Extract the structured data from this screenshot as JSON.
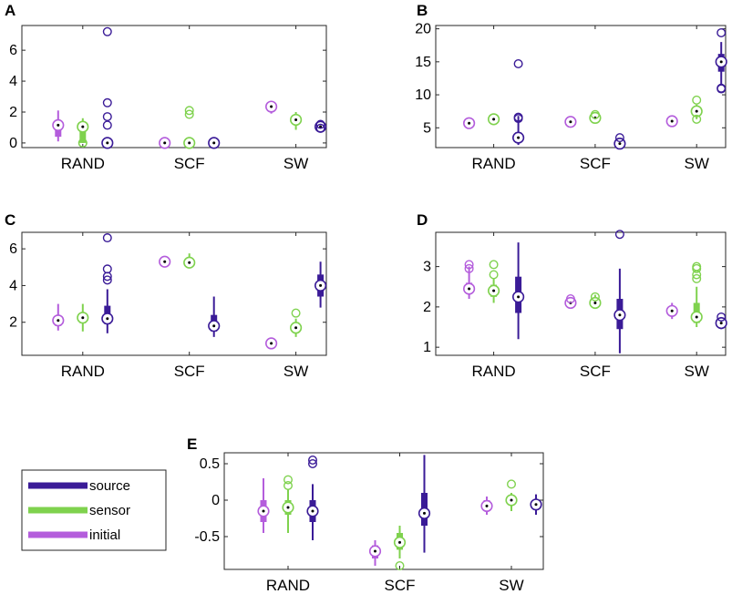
{
  "chart_data": {
    "type": "boxplot",
    "categories": [
      "RAND",
      "SCF",
      "SW"
    ],
    "series_order": [
      "initial",
      "sensor",
      "source"
    ],
    "legend": {
      "placement": "bottom-left",
      "entries": [
        {
          "key": "source",
          "label": "source"
        },
        {
          "key": "sensor",
          "label": "sensor"
        },
        {
          "key": "initial",
          "label": "initial"
        }
      ]
    },
    "colors": {
      "initial": "#b45ddc",
      "sensor": "#7fd24e",
      "source": "#3a1b97"
    },
    "panels": [
      {
        "id": "A",
        "label": "A",
        "ylim": [
          -0.3,
          7.6
        ],
        "yticks": [
          0,
          2,
          4,
          6
        ],
        "ytick_labels": [
          "0",
          "2",
          "4",
          "6"
        ],
        "boxes": [
          {
            "category": "RAND",
            "series": "initial",
            "median": 1.15,
            "q1": 0.4,
            "q3": 1.3,
            "whisker_low": 0.1,
            "whisker_high": 2.1,
            "outliers": []
          },
          {
            "category": "RAND",
            "series": "sensor",
            "median": 1.05,
            "q1": 0.0,
            "q3": 1.15,
            "whisker_low": 0.0,
            "whisker_high": 1.6,
            "outliers": [
              0.0,
              0.0
            ]
          },
          {
            "category": "RAND",
            "series": "source",
            "median": 0.0,
            "q1": 0.0,
            "q3": 0.0,
            "whisker_low": 0.0,
            "whisker_high": 0.0,
            "outliers": [
              7.2,
              2.6,
              1.7,
              1.15
            ]
          },
          {
            "category": "SCF",
            "series": "initial",
            "median": 0.0,
            "q1": 0.0,
            "q3": 0.0,
            "whisker_low": 0.0,
            "whisker_high": 0.0,
            "outliers": []
          },
          {
            "category": "SCF",
            "series": "sensor",
            "median": 0.0,
            "q1": 0.0,
            "q3": 0.0,
            "whisker_low": 0.0,
            "whisker_high": 0.0,
            "outliers": [
              2.1,
              1.85
            ]
          },
          {
            "category": "SCF",
            "series": "source",
            "median": 0.0,
            "q1": 0.0,
            "q3": 0.0,
            "whisker_low": 0.0,
            "whisker_high": 0.0,
            "outliers": []
          },
          {
            "category": "SW",
            "series": "initial",
            "median": 2.35,
            "q1": 2.2,
            "q3": 2.5,
            "whisker_low": 1.9,
            "whisker_high": 2.7,
            "outliers": []
          },
          {
            "category": "SW",
            "series": "sensor",
            "median": 1.5,
            "q1": 1.2,
            "q3": 1.8,
            "whisker_low": 0.85,
            "whisker_high": 2.0,
            "outliers": []
          },
          {
            "category": "SW",
            "series": "source",
            "median": 1.05,
            "q1": 0.95,
            "q3": 1.2,
            "whisker_low": 0.85,
            "whisker_high": 1.3,
            "outliers": [
              1.2,
              0.95
            ]
          }
        ]
      },
      {
        "id": "B",
        "label": "B",
        "ylim": [
          2,
          20.5
        ],
        "yticks": [
          5,
          10,
          15,
          20
        ],
        "ytick_labels": [
          "5",
          "10",
          "15",
          "20"
        ],
        "boxes": [
          {
            "category": "RAND",
            "series": "initial",
            "median": 5.7,
            "q1": 5.5,
            "q3": 5.9,
            "whisker_low": 5.3,
            "whisker_high": 6.1,
            "outliers": []
          },
          {
            "category": "RAND",
            "series": "sensor",
            "median": 6.3,
            "q1": 6.1,
            "q3": 6.5,
            "whisker_low": 5.9,
            "whisker_high": 6.7,
            "outliers": []
          },
          {
            "category": "RAND",
            "series": "source",
            "median": 3.5,
            "q1": 2.8,
            "q3": 4.3,
            "whisker_low": 2.4,
            "whisker_high": 6.8,
            "outliers": [
              14.7,
              6.6,
              6.4
            ]
          },
          {
            "category": "SCF",
            "series": "initial",
            "median": 5.9,
            "q1": 5.7,
            "q3": 6.1,
            "whisker_low": 5.5,
            "whisker_high": 6.3,
            "outliers": []
          },
          {
            "category": "SCF",
            "series": "sensor",
            "median": 6.5,
            "q1": 6.2,
            "q3": 6.8,
            "whisker_low": 6.0,
            "whisker_high": 7.0,
            "outliers": [
              7.0
            ]
          },
          {
            "category": "SCF",
            "series": "source",
            "median": 2.6,
            "q1": 2.3,
            "q3": 2.9,
            "whisker_low": 2.1,
            "whisker_high": 3.1,
            "outliers": [
              3.5
            ]
          },
          {
            "category": "SW",
            "series": "initial",
            "median": 6.0,
            "q1": 5.8,
            "q3": 6.2,
            "whisker_low": 5.6,
            "whisker_high": 6.4,
            "outliers": []
          },
          {
            "category": "SW",
            "series": "sensor",
            "median": 7.5,
            "q1": 7.0,
            "q3": 8.0,
            "whisker_low": 6.3,
            "whisker_high": 8.5,
            "outliers": [
              9.2,
              6.3
            ]
          },
          {
            "category": "SW",
            "series": "source",
            "median": 15.0,
            "q1": 13.5,
            "q3": 16.2,
            "whisker_low": 11.5,
            "whisker_high": 18.0,
            "outliers": [
              19.4,
              11.0,
              10.9
            ]
          }
        ]
      },
      {
        "id": "C",
        "label": "C",
        "ylim": [
          0.2,
          6.9
        ],
        "yticks": [
          2,
          4,
          6
        ],
        "ytick_labels": [
          "2",
          "4",
          "6"
        ],
        "boxes": [
          {
            "category": "RAND",
            "series": "initial",
            "median": 2.1,
            "q1": 1.8,
            "q3": 2.35,
            "whisker_low": 1.55,
            "whisker_high": 3.0,
            "outliers": []
          },
          {
            "category": "RAND",
            "series": "sensor",
            "median": 2.25,
            "q1": 1.95,
            "q3": 2.5,
            "whisker_low": 1.5,
            "whisker_high": 3.0,
            "outliers": []
          },
          {
            "category": "RAND",
            "series": "source",
            "median": 2.2,
            "q1": 1.9,
            "q3": 2.9,
            "whisker_low": 1.4,
            "whisker_high": 3.8,
            "outliers": [
              6.6,
              4.9,
              4.5,
              4.3
            ]
          },
          {
            "category": "SCF",
            "series": "initial",
            "median": 5.3,
            "q1": 5.2,
            "q3": 5.4,
            "whisker_low": 5.1,
            "whisker_high": 5.5,
            "outliers": []
          },
          {
            "category": "SCF",
            "series": "sensor",
            "median": 5.25,
            "q1": 5.1,
            "q3": 5.4,
            "whisker_low": 4.95,
            "whisker_high": 5.75,
            "outliers": []
          },
          {
            "category": "SCF",
            "series": "source",
            "median": 1.8,
            "q1": 1.5,
            "q3": 2.4,
            "whisker_low": 1.2,
            "whisker_high": 3.4,
            "outliers": []
          },
          {
            "category": "SW",
            "series": "initial",
            "median": 0.85,
            "q1": 0.75,
            "q3": 0.95,
            "whisker_low": 0.6,
            "whisker_high": 1.1,
            "outliers": []
          },
          {
            "category": "SW",
            "series": "sensor",
            "median": 1.7,
            "q1": 1.45,
            "q3": 2.0,
            "whisker_low": 1.2,
            "whisker_high": 2.2,
            "outliers": [
              2.5
            ]
          },
          {
            "category": "SW",
            "series": "source",
            "median": 4.0,
            "q1": 3.4,
            "q3": 4.6,
            "whisker_low": 2.8,
            "whisker_high": 5.3,
            "outliers": []
          }
        ]
      },
      {
        "id": "D",
        "label": "D",
        "ylim": [
          0.8,
          3.85
        ],
        "yticks": [
          1,
          2,
          3
        ],
        "ytick_labels": [
          "1",
          "2",
          "3"
        ],
        "boxes": [
          {
            "category": "RAND",
            "series": "initial",
            "median": 2.45,
            "q1": 2.35,
            "q3": 2.6,
            "whisker_low": 2.2,
            "whisker_high": 3.0,
            "outliers": [
              3.05,
              2.95
            ]
          },
          {
            "category": "RAND",
            "series": "sensor",
            "median": 2.4,
            "q1": 2.25,
            "q3": 2.55,
            "whisker_low": 2.1,
            "whisker_high": 2.7,
            "outliers": [
              3.05,
              2.8
            ]
          },
          {
            "category": "RAND",
            "series": "source",
            "median": 2.25,
            "q1": 1.85,
            "q3": 2.75,
            "whisker_low": 1.2,
            "whisker_high": 3.6,
            "outliers": []
          },
          {
            "category": "SCF",
            "series": "initial",
            "median": 2.1,
            "q1": 2.05,
            "q3": 2.15,
            "whisker_low": 2.0,
            "whisker_high": 2.2,
            "outliers": [
              2.2
            ]
          },
          {
            "category": "SCF",
            "series": "sensor",
            "median": 2.1,
            "q1": 2.0,
            "q3": 2.2,
            "whisker_low": 1.95,
            "whisker_high": 2.3,
            "outliers": [
              2.25
            ]
          },
          {
            "category": "SCF",
            "series": "source",
            "median": 1.8,
            "q1": 1.45,
            "q3": 2.2,
            "whisker_low": 0.85,
            "whisker_high": 2.95,
            "outliers": [
              3.8
            ]
          },
          {
            "category": "SW",
            "series": "initial",
            "median": 1.9,
            "q1": 1.8,
            "q3": 2.0,
            "whisker_low": 1.7,
            "whisker_high": 2.1,
            "outliers": []
          },
          {
            "category": "SW",
            "series": "sensor",
            "median": 1.75,
            "q1": 1.6,
            "q3": 2.1,
            "whisker_low": 1.5,
            "whisker_high": 2.5,
            "outliers": [
              3.0,
              2.95,
              2.8,
              2.7
            ]
          },
          {
            "category": "SW",
            "series": "source",
            "median": 1.6,
            "q1": 1.5,
            "q3": 1.7,
            "whisker_low": 1.45,
            "whisker_high": 1.75,
            "outliers": [
              1.75
            ]
          }
        ]
      },
      {
        "id": "E",
        "label": "E",
        "ylim": [
          -0.95,
          0.65
        ],
        "yticks": [
          -0.5,
          0,
          0.5
        ],
        "ytick_labels": [
          "-0.5",
          "0",
          "0.5"
        ],
        "boxes": [
          {
            "category": "RAND",
            "series": "initial",
            "median": -0.15,
            "q1": -0.3,
            "q3": 0.0,
            "whisker_low": -0.45,
            "whisker_high": 0.3,
            "outliers": []
          },
          {
            "category": "RAND",
            "series": "sensor",
            "median": -0.1,
            "q1": -0.2,
            "q3": 0.0,
            "whisker_low": -0.45,
            "whisker_high": 0.15,
            "outliers": [
              0.28,
              0.2
            ]
          },
          {
            "category": "RAND",
            "series": "source",
            "median": -0.15,
            "q1": -0.3,
            "q3": 0.0,
            "whisker_low": -0.55,
            "whisker_high": 0.22,
            "outliers": [
              0.55,
              0.5
            ]
          },
          {
            "category": "SCF",
            "series": "initial",
            "median": -0.7,
            "q1": -0.8,
            "q3": -0.62,
            "whisker_low": -0.9,
            "whisker_high": -0.55,
            "outliers": []
          },
          {
            "category": "SCF",
            "series": "sensor",
            "median": -0.58,
            "q1": -0.68,
            "q3": -0.45,
            "whisker_low": -0.8,
            "whisker_high": -0.35,
            "outliers": [
              -0.9
            ]
          },
          {
            "category": "SCF",
            "series": "source",
            "median": -0.18,
            "q1": -0.35,
            "q3": 0.1,
            "whisker_low": -0.72,
            "whisker_high": 0.62,
            "outliers": []
          },
          {
            "category": "SW",
            "series": "initial",
            "median": -0.08,
            "q1": -0.15,
            "q3": 0.0,
            "whisker_low": -0.2,
            "whisker_high": 0.05,
            "outliers": []
          },
          {
            "category": "SW",
            "series": "sensor",
            "median": 0.0,
            "q1": -0.05,
            "q3": 0.05,
            "whisker_low": -0.15,
            "whisker_high": 0.1,
            "outliers": [
              0.22
            ]
          },
          {
            "category": "SW",
            "series": "source",
            "median": -0.06,
            "q1": -0.12,
            "q3": 0.0,
            "whisker_low": -0.2,
            "whisker_high": 0.08,
            "outliers": []
          }
        ]
      }
    ]
  }
}
